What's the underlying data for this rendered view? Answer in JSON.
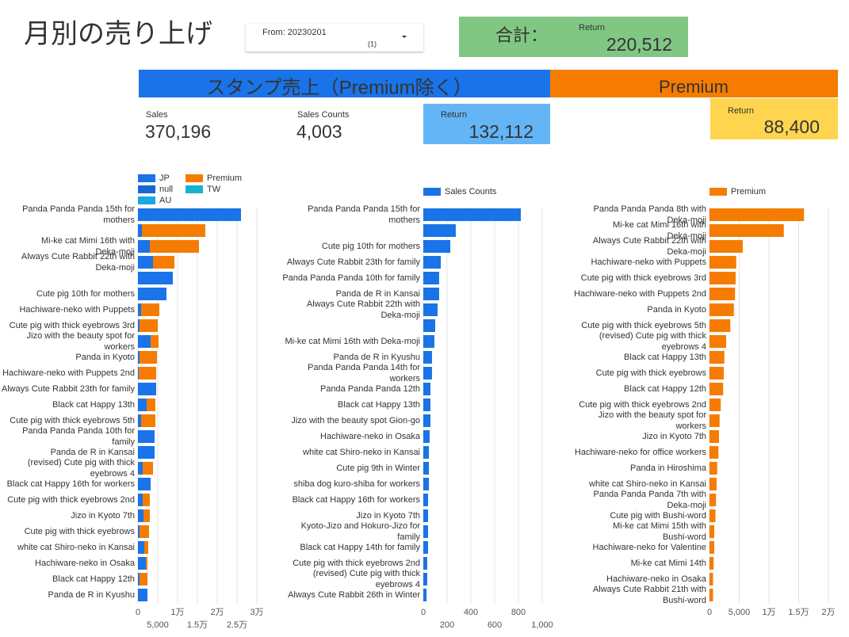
{
  "header": {
    "title": "月別の売り上げ",
    "filter": {
      "label": "From: 20230201",
      "count": "(1)"
    },
    "total": {
      "label": "合計：",
      "metric": "Return",
      "value": "220,512"
    }
  },
  "sections": [
    {
      "title": "スタンプ売上（Premium除く）",
      "scorecards": [
        {
          "label": "Sales",
          "value": "370,196"
        },
        {
          "label": "Sales Counts",
          "value": "4,003"
        },
        {
          "label": "Return",
          "value": "132,112"
        }
      ]
    },
    {
      "title": "Premium",
      "scorecards": [
        {
          "label": "Return",
          "value": "88,400"
        }
      ]
    }
  ],
  "chart_data": [
    {
      "type": "bar",
      "stacked": true,
      "grid": true,
      "categories": [
        "Panda Panda Panda 15th for mothers",
        null,
        "Mi-ke cat Mimi 16th with Deka-moji",
        "Always Cute Rabbit 22th with Deka-moji",
        null,
        "Cute pig 10th for mothers",
        "Hachiware-neko with Puppets",
        "Cute pig with thick eyebrows 3rd",
        "Jizo with the beauty spot for workers",
        "Panda in Kyoto",
        "Hachiware-neko with Puppets 2nd",
        "Always Cute Rabbit 23th for family",
        "Black cat Happy 13th",
        "Cute pig with thick eyebrows 5th",
        "Panda Panda Panda 10th for family",
        "Panda de R in Kansai",
        "(revised) Cute pig with thick eyebrows 4",
        "Black cat Happy 16th for workers",
        "Cute pig with thick eyebrows 2nd",
        "Jizo in Kyoto 7th",
        "Cute pig with thick eyebrows",
        "white cat Shiro-neko in Kansai",
        "Hachiware-neko in Osaka",
        "Black cat Happy 12th",
        "Panda de R in Kyushu"
      ],
      "series": [
        {
          "name": "JP",
          "color": "#1a73e8",
          "values": [
            26000,
            1000,
            3000,
            3800,
            8800,
            7200,
            800,
            400,
            3200,
            400,
            200,
            4600,
            2200,
            800,
            4200,
            4200,
            1200,
            3200,
            1200,
            1400,
            400,
            1600,
            2000,
            400,
            2400
          ]
        },
        {
          "name": "Premium",
          "color": "#f57c00",
          "values": [
            null,
            16000,
            12400,
            5400,
            null,
            null,
            4600,
            4600,
            2000,
            4400,
            4400,
            null,
            2200,
            3600,
            null,
            null,
            2600,
            null,
            1800,
            1600,
            2400,
            1000,
            400,
            2000,
            null
          ]
        },
        {
          "name": "null",
          "color": "#1967d2",
          "values": [
            null,
            null,
            null,
            null,
            null,
            null,
            null,
            null,
            null,
            null,
            null,
            null,
            null,
            null,
            null,
            null,
            null,
            null,
            null,
            null,
            null,
            null,
            null,
            null,
            null
          ]
        },
        {
          "name": "TW",
          "color": "#12b5cb",
          "values": [
            null,
            null,
            null,
            null,
            null,
            null,
            null,
            null,
            null,
            null,
            null,
            null,
            null,
            null,
            null,
            null,
            null,
            null,
            null,
            null,
            null,
            null,
            null,
            null,
            null
          ]
        },
        {
          "name": "AU",
          "color": "#1ea5e6",
          "values": [
            null,
            null,
            null,
            null,
            null,
            null,
            null,
            null,
            null,
            null,
            null,
            null,
            null,
            null,
            null,
            null,
            null,
            null,
            null,
            null,
            null,
            null,
            null,
            null,
            null
          ]
        }
      ],
      "xlim": [
        0,
        32000
      ],
      "xticks": [
        0,
        {
          "value": 5000,
          "label": "5,000"
        },
        {
          "value": 10000,
          "label": "1万"
        },
        {
          "value": 15000,
          "label": "1.5万"
        },
        {
          "value": 20000,
          "label": "2万"
        },
        {
          "value": 25000,
          "label": "2.5万"
        },
        {
          "value": 30000,
          "label": "3万"
        }
      ]
    },
    {
      "type": "bar",
      "grid": true,
      "categories": [
        "Panda Panda Panda 15th for mothers",
        null,
        "Cute pig 10th for mothers",
        "Always Cute Rabbit 23th for family",
        "Panda Panda Panda 10th for family",
        "Panda de R in Kansai",
        "Always Cute Rabbit 22th with Deka-moji",
        null,
        "Mi-ke cat Mimi 16th with Deka-moji",
        "Panda de R in Kyushu",
        "Panda Panda Panda 14th for workers",
        "Panda Panda Panda 12th",
        "Black cat Happy 13th",
        "Jizo with the beauty spot Gion-go",
        "Hachiware-neko in Osaka",
        "white cat Shiro-neko in Kansai",
        "Cute pig 9th in Winter",
        "shiba dog kuro-shiba for workers",
        "Black cat Happy 16th for workers",
        "Jizo in Kyoto 7th",
        "Kyoto-Jizo and Hokuro-Jizo for family",
        "Black cat Happy 14th for family",
        "Cute pig with thick eyebrows 2nd",
        "(revised) Cute pig with thick eyebrows 4",
        "Always Cute Rabbit 26th in Winter"
      ],
      "series": [
        {
          "name": "Sales Counts",
          "color": "#1a73e8",
          "values": [
            820,
            273,
            227,
            147,
            133,
            133,
            120,
            100,
            93,
            73,
            73,
            60,
            60,
            60,
            53,
            47,
            47,
            47,
            40,
            40,
            40,
            40,
            33,
            33,
            27
          ]
        }
      ],
      "xlim": [
        0,
        1000
      ],
      "xticks": [
        0,
        200,
        400,
        600,
        800,
        {
          "value": 1000,
          "label": "1,000"
        }
      ]
    },
    {
      "type": "bar",
      "grid": true,
      "categories": [
        "Panda Panda Panda 8th with Deka-moji",
        "Mi-ke cat Mimi 16th with Deka-moji",
        "Always Cute Rabbit 22th with Deka-moji",
        "Hachiware-neko with Puppets",
        "Cute pig with thick eyebrows 3rd",
        "Hachiware-neko with Puppets 2nd",
        "Panda in Kyoto",
        "Cute pig with thick eyebrows 5th",
        "(revised) Cute pig with thick eyebrows 4",
        "Black cat Happy 13th",
        "Cute pig with thick eyebrows",
        "Black cat Happy 12th",
        "Cute pig with thick eyebrows 2nd",
        "Jizo with the beauty spot for workers",
        "Jizo in Kyoto 7th",
        "Hachiware-neko for office workers",
        "Panda in Hiroshima",
        "white cat Shiro-neko in Kansai",
        "Panda Panda Panda 7th with Deka-moji",
        "Cute pig with Bushi-word",
        "Mi-ke cat Mimi 15th with Bushi-word",
        "Hachiware-neko for Valentine",
        "Mi-ke cat Mimi 14th",
        "Hachiware-neko in Osaka",
        "Always Cute Rabbit 21th with Bushi-word"
      ],
      "series": [
        {
          "name": "Premium",
          "color": "#f57c00",
          "values": [
            15900,
            12500,
            5600,
            4500,
            4400,
            4300,
            4100,
            3500,
            2800,
            2500,
            2400,
            2300,
            1900,
            1700,
            1600,
            1500,
            1300,
            1200,
            1100,
            1000,
            800,
            800,
            700,
            600,
            600
          ]
        }
      ],
      "xlim": [
        0,
        20000
      ],
      "xticks": [
        0,
        {
          "value": 5000,
          "label": "5,000"
        },
        {
          "value": 10000,
          "label": "1万"
        },
        {
          "value": 15000,
          "label": "1.5万"
        },
        {
          "value": 20000,
          "label": "2万"
        }
      ]
    }
  ]
}
